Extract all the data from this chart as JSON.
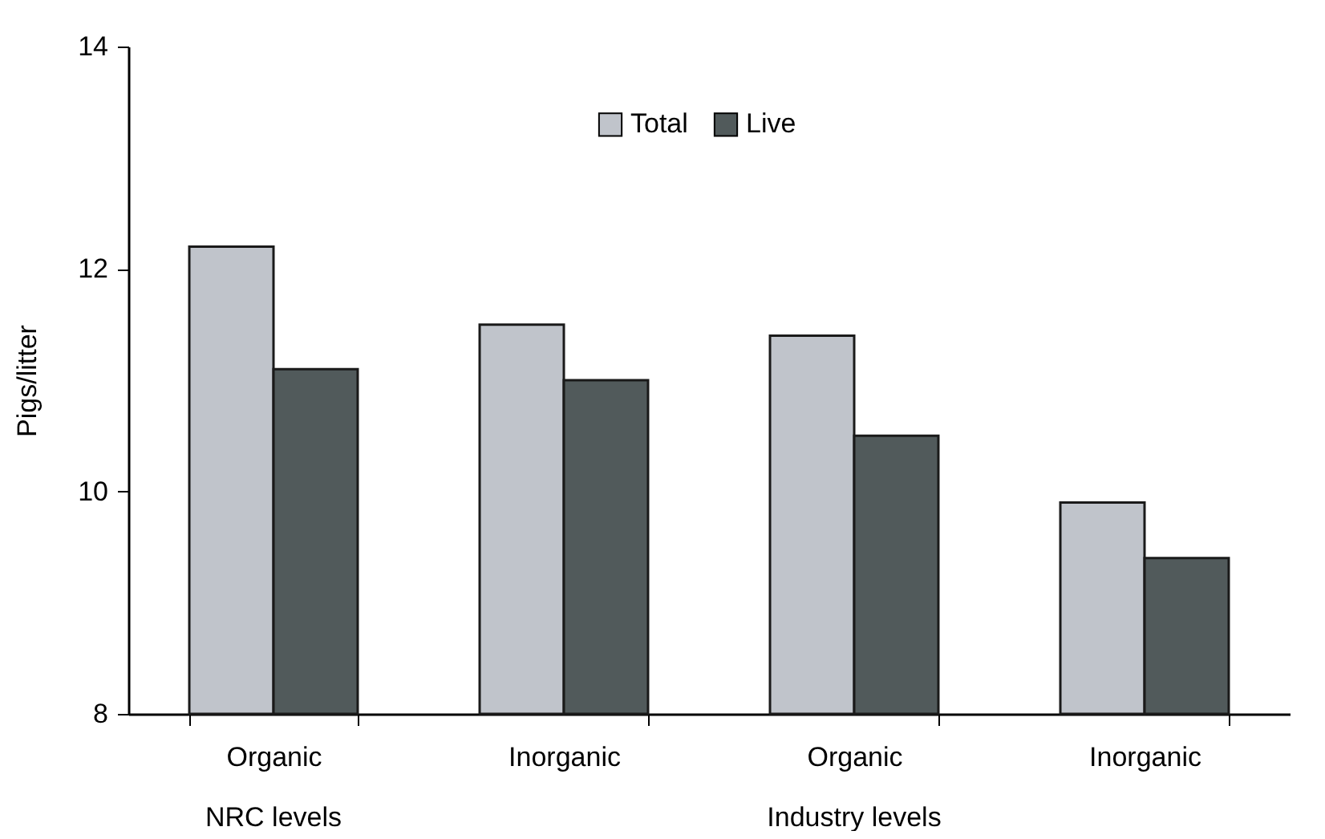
{
  "chart_data": {
    "type": "bar",
    "ylabel": "Pigs/litter",
    "categories": [
      "Organic",
      "Inorganic",
      "Organic",
      "Inorganic"
    ],
    "series": [
      {
        "name": "Total",
        "color": "#c0c4cb",
        "values": [
          12.2,
          11.5,
          11.4,
          9.9
        ]
      },
      {
        "name": "Live",
        "color": "#515a5b",
        "values": [
          11.1,
          11.0,
          10.5,
          9.4
        ]
      }
    ],
    "annotations": [
      "NRC levels",
      "Industry levels"
    ],
    "ylim": [
      8,
      14
    ],
    "yticks": [
      8,
      10,
      12,
      14
    ],
    "grid": false,
    "legend": "top"
  }
}
